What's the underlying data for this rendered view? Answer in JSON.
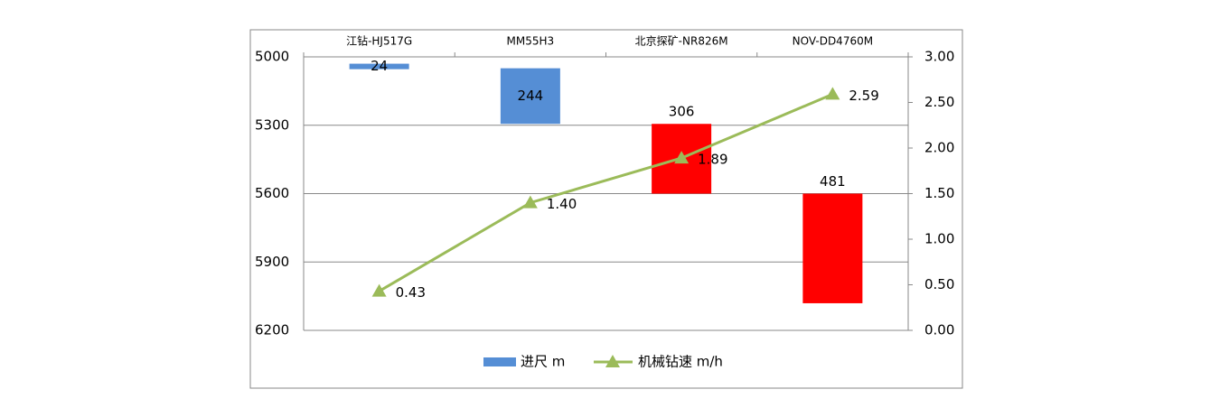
{
  "chart_data": {
    "type": "floating-bar-line",
    "categories": [
      "江钻-HJ517G",
      "MM55H3",
      "北京探矿-NR826M",
      "NOV-DD4760M"
    ],
    "bars": {
      "name": "进尺 m",
      "starts": [
        5030,
        5050,
        5294,
        5600
      ],
      "values": [
        24,
        244,
        306,
        481
      ],
      "colors": [
        "#558ed5",
        "#558ed5",
        "#ff0000",
        "#ff0000"
      ]
    },
    "line": {
      "name": "机械钻速 m/h",
      "axis": "y2",
      "color": "#9bbb59",
      "values": [
        0.43,
        1.4,
        1.89,
        2.59
      ],
      "value_labels": [
        "0.43",
        "1.40",
        "1.89",
        "2.59"
      ]
    },
    "ylim": [
      5000,
      6200
    ],
    "y_inverted": true,
    "yticks": [
      5000,
      5300,
      5600,
      5900,
      6200
    ],
    "y2lim": [
      0,
      3
    ],
    "y2ticks": [
      {
        "value": 0,
        "label": "0.00"
      },
      {
        "value": 0.5,
        "label": "0.50"
      },
      {
        "value": 1,
        "label": "1.00"
      },
      {
        "value": 1.5,
        "label": "1.50"
      },
      {
        "value": 2,
        "label": "2.00"
      },
      {
        "value": 2.5,
        "label": "2.50"
      },
      {
        "value": 3,
        "label": "3.00"
      }
    ],
    "grid": true,
    "legend": "bottom"
  }
}
